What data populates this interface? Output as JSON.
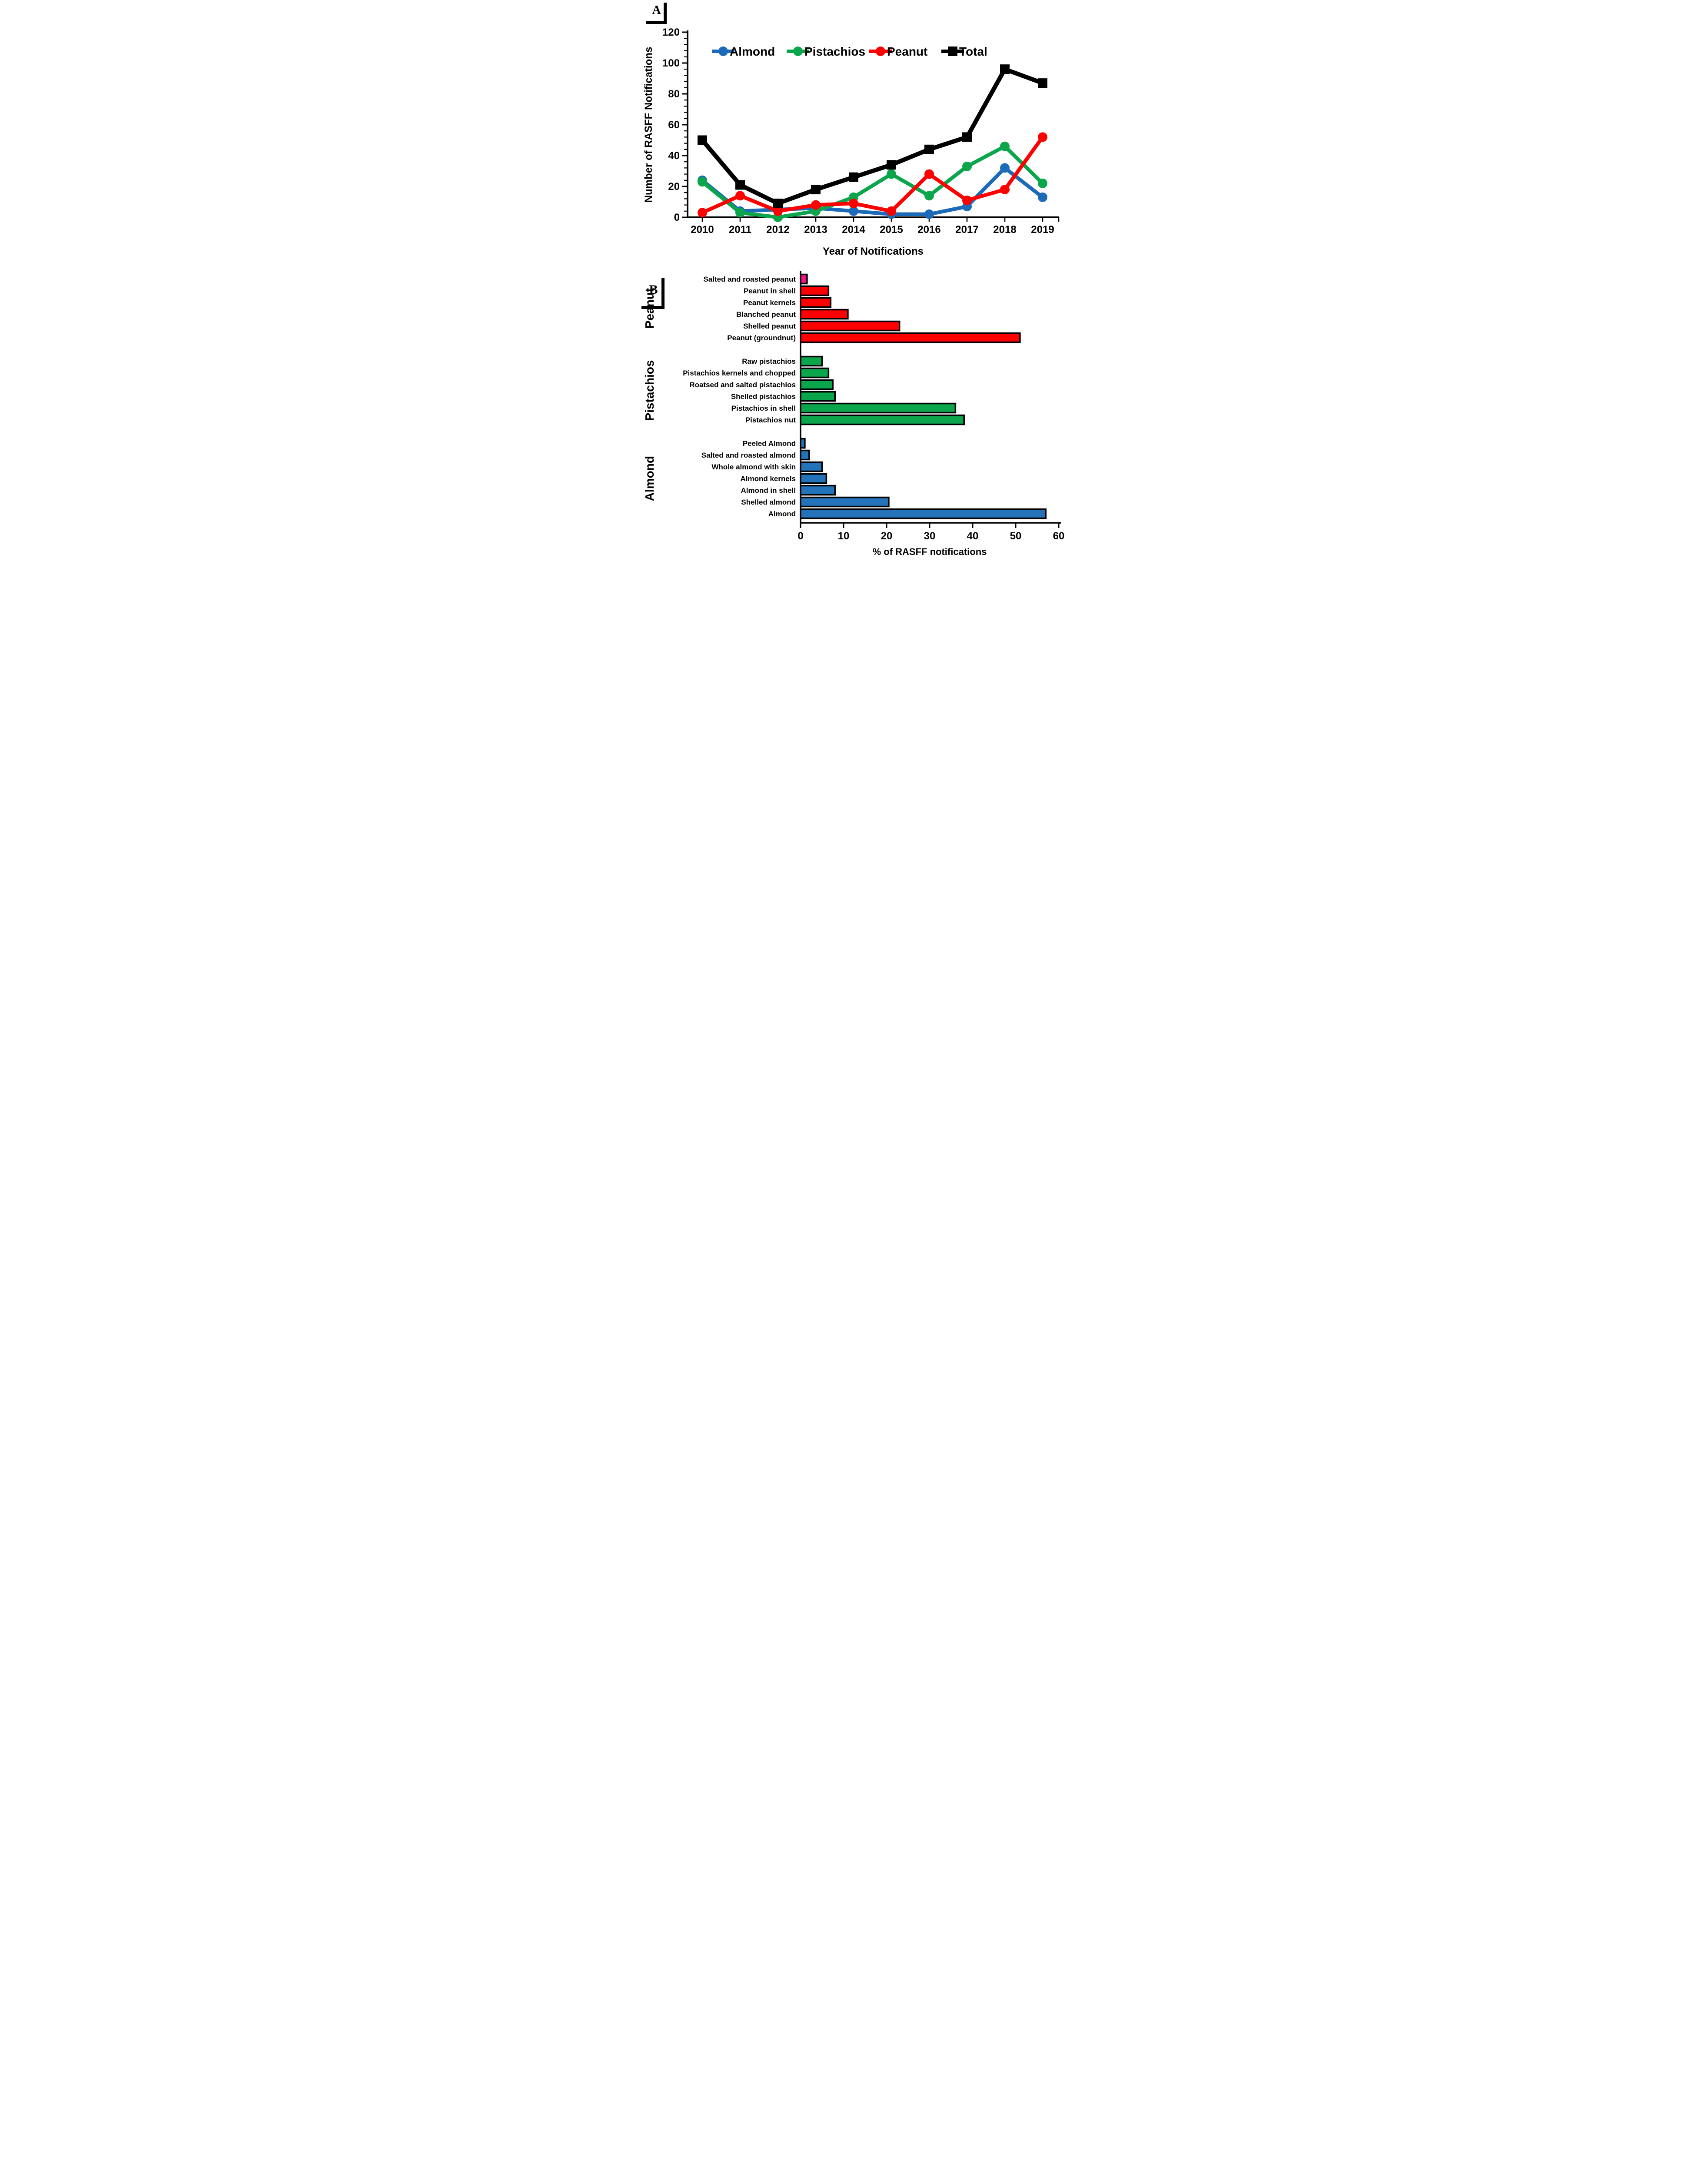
{
  "panelA": {
    "label": "A"
  },
  "panelB": {
    "label": "B"
  },
  "colors": {
    "almond_line": "#1C6BB8",
    "almond_bar": "#2273B9",
    "pistachio_green": "#0BA64C",
    "peanut_red": "#FF0000",
    "total_black": "#000000",
    "salted_peanut_pink": "#F5128C"
  },
  "chart_data": [
    {
      "type": "line",
      "panel": "A",
      "xlabel": "Year of Notifications",
      "ylabel": "Number of RASFF Notifications",
      "x": [
        2010,
        2011,
        2012,
        2013,
        2014,
        2015,
        2016,
        2017,
        2018,
        2019
      ],
      "ylim": [
        0,
        120
      ],
      "ytick_step": 20,
      "yminor_step": 4,
      "grid": false,
      "legend_position": "top-inside",
      "series": [
        {
          "name": "Almond",
          "color": "#1C6BB8",
          "marker": "circle",
          "values": [
            24,
            4,
            5,
            6,
            4,
            2,
            2,
            7,
            32,
            13
          ]
        },
        {
          "name": "Pistachios",
          "color": "#0BA64C",
          "marker": "circle",
          "values": [
            23,
            3,
            0,
            4,
            13,
            28,
            14,
            33,
            46,
            22
          ]
        },
        {
          "name": "Peanut",
          "color": "#FF0000",
          "marker": "circle",
          "values": [
            3,
            14,
            4,
            8,
            9,
            4,
            28,
            11,
            18,
            52
          ]
        },
        {
          "name": "Total",
          "color": "#000000",
          "marker": "square",
          "values": [
            50,
            21,
            9,
            18,
            26,
            34,
            44,
            52,
            96,
            87
          ]
        }
      ]
    },
    {
      "type": "bar",
      "panel": "B",
      "orientation": "horizontal",
      "xlabel": "% of RASFF notifications",
      "xlim": [
        0,
        60
      ],
      "xtick_step": 10,
      "grid": false,
      "groups": [
        {
          "name": "Peanut",
          "label_color": "#FF0000",
          "items": [
            {
              "label": "Salted and roasted peanut",
              "value": 1.5,
              "color": "#F5128C"
            },
            {
              "label": "Peanut in shell",
              "value": 6.5,
              "color": "#FF0000"
            },
            {
              "label": "Peanut kernels",
              "value": 7,
              "color": "#FF0000"
            },
            {
              "label": "Blanched peanut",
              "value": 11,
              "color": "#FF0000"
            },
            {
              "label": "Shelled peanut",
              "value": 23,
              "color": "#FF0000"
            },
            {
              "label": "Peanut (groundnut)",
              "value": 51,
              "color": "#FF0000"
            }
          ]
        },
        {
          "name": "Pistachios",
          "label_color": "#0BA64C",
          "items": [
            {
              "label": "Raw pistachios",
              "value": 5,
              "color": "#0BA64C"
            },
            {
              "label": "Pistachios kernels and chopped",
              "value": 6.5,
              "color": "#0BA64C"
            },
            {
              "label": "Roatsed and salted pistachios",
              "value": 7.5,
              "color": "#0BA64C"
            },
            {
              "label": "Shelled pistachios",
              "value": 8,
              "color": "#0BA64C"
            },
            {
              "label": "Pistachios in shell",
              "value": 36,
              "color": "#0BA64C"
            },
            {
              "label": "Pistachios nut",
              "value": 38,
              "color": "#0BA64C"
            }
          ]
        },
        {
          "name": "Almond",
          "label_color": "#2273B9",
          "items": [
            {
              "label": "Peeled Almond",
              "value": 1,
              "color": "#2273B9"
            },
            {
              "label": "Salted and roasted almond",
              "value": 2,
              "color": "#2273B9"
            },
            {
              "label": "Whole almond with skin",
              "value": 5,
              "color": "#2273B9"
            },
            {
              "label": "Almond kernels",
              "value": 6,
              "color": "#2273B9"
            },
            {
              "label": "Almond in shell",
              "value": 8,
              "color": "#2273B9"
            },
            {
              "label": "Shelled almond",
              "value": 20.5,
              "color": "#2273B9"
            },
            {
              "label": "Almond",
              "value": 57,
              "color": "#2273B9"
            }
          ]
        }
      ]
    }
  ]
}
